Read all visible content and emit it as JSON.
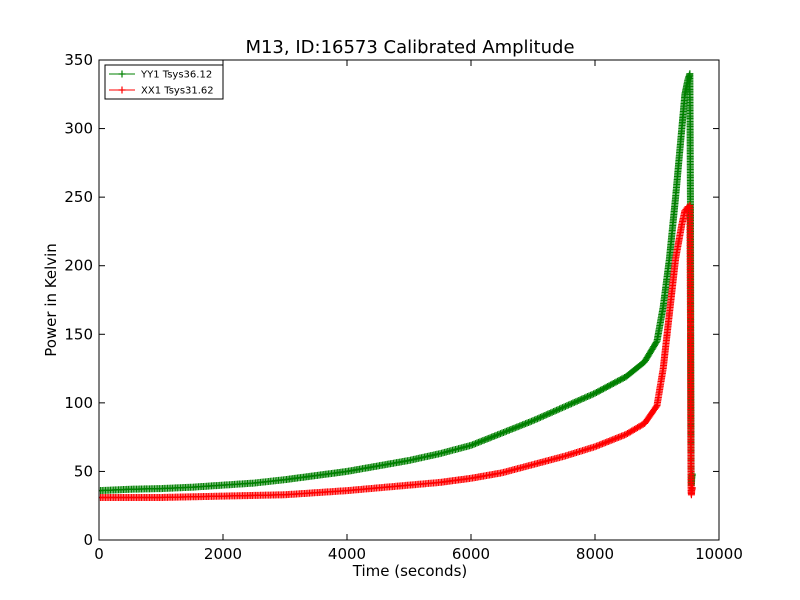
{
  "chart_data": {
    "type": "line",
    "title": "M13, ID:16573 Calibrated Amplitude",
    "xlabel": "Time (seconds)",
    "ylabel": "Power in Kelvin",
    "xlim": [
      0,
      10000
    ],
    "ylim": [
      0,
      350
    ],
    "xticks": [
      0,
      2000,
      4000,
      6000,
      8000,
      10000
    ],
    "yticks": [
      0,
      50,
      100,
      150,
      200,
      250,
      300,
      350
    ],
    "grid": false,
    "legend_position": "top-left",
    "marker": "+",
    "series": [
      {
        "name": "YY1 Tsys36.12",
        "color": "#008000",
        "x": [
          0,
          500,
          1000,
          1500,
          2000,
          2500,
          3000,
          3500,
          4000,
          4500,
          5000,
          5500,
          6000,
          6500,
          7000,
          7500,
          8000,
          8500,
          8800,
          9000,
          9100,
          9200,
          9300,
          9400,
          9450,
          9500,
          9530,
          9540,
          9545,
          9550,
          9555,
          9560,
          9570
        ],
        "y": [
          36,
          37,
          37.5,
          38.5,
          40,
          41.5,
          44,
          47,
          50,
          54,
          58,
          63,
          69,
          78,
          87,
          97,
          107,
          119,
          130,
          145,
          170,
          205,
          250,
          300,
          325,
          336,
          340,
          240,
          120,
          50,
          40,
          45,
          48
        ]
      },
      {
        "name": "XX1 Tsys31.62",
        "color": "#ff0000",
        "x": [
          0,
          500,
          1000,
          1500,
          2000,
          2500,
          3000,
          3500,
          4000,
          4500,
          5000,
          5500,
          6000,
          6500,
          7000,
          7500,
          8000,
          8500,
          8800,
          9000,
          9100,
          9200,
          9300,
          9400,
          9450,
          9500,
          9530,
          9540,
          9545,
          9550,
          9555,
          9560,
          9570
        ],
        "y": [
          31,
          31,
          31,
          31.5,
          32,
          32.5,
          33,
          34.5,
          36,
          38,
          40,
          42,
          45,
          49,
          55,
          61,
          68,
          77,
          85,
          98,
          125,
          165,
          205,
          230,
          240,
          243,
          244,
          160,
          80,
          35,
          33,
          36,
          38
        ]
      }
    ]
  }
}
